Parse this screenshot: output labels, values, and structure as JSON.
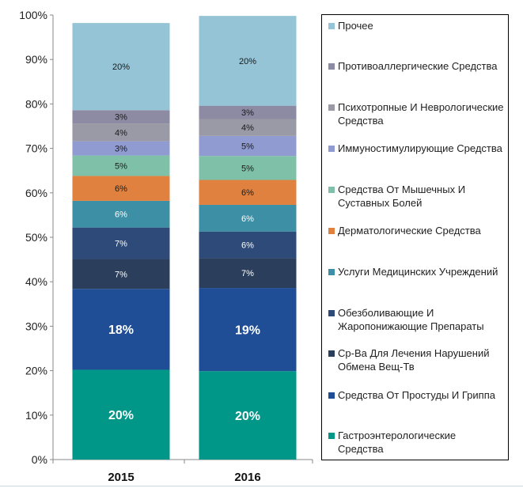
{
  "chart_data": {
    "type": "bar",
    "stacked": true,
    "categories": [
      "2015",
      "2016"
    ],
    "ylim": [
      0,
      100
    ],
    "yticks": [
      "0%",
      "10%",
      "20%",
      "30%",
      "40%",
      "50%",
      "60%",
      "70%",
      "80%",
      "90%",
      "100%"
    ],
    "grid": false,
    "legend_position": "right",
    "series": [
      {
        "name": "Гастроэнтерологические Средства",
        "color": "#009688",
        "values": [
          20.2,
          19.9
        ],
        "labels": [
          "20%",
          "20%"
        ],
        "label_style": "large"
      },
      {
        "name": "Средства От Простуды И Гриппа",
        "color": "#1f4e96",
        "values": [
          18.2,
          18.7
        ],
        "labels": [
          "18%",
          "19%"
        ],
        "label_style": "large"
      },
      {
        "name": "Ср-Ва Для Лечения Нарушений Обмена Вещ-Тв",
        "color": "#2b3f5c",
        "values": [
          6.7,
          6.7
        ],
        "labels": [
          "7%",
          "7%"
        ],
        "label_style": "small-light"
      },
      {
        "name": "Обезболивающие И Жаропонижающие Препараты",
        "color": "#2e4a78",
        "values": [
          7.1,
          6.0
        ],
        "labels": [
          "7%",
          "6%"
        ],
        "label_style": "small-light"
      },
      {
        "name": "Услуги Медицинских Учреждений",
        "color": "#3c8fa5",
        "values": [
          6.0,
          6.0
        ],
        "labels": [
          "6%",
          "6%"
        ],
        "label_style": "small-light"
      },
      {
        "name": "Дерматологические Средства",
        "color": "#e0813f",
        "values": [
          5.6,
          5.6
        ],
        "labels": [
          "6%",
          "6%"
        ],
        "label_style": "small-dark"
      },
      {
        "name": "Средства От Мышечных И Суставных Болей",
        "color": "#7fc1a8",
        "values": [
          4.6,
          5.4
        ],
        "labels": [
          "5%",
          "5%"
        ],
        "label_style": "small-dark"
      },
      {
        "name": "Иммуностимулирующие Средства",
        "color": "#8f9bd1",
        "values": [
          3.2,
          4.5
        ],
        "labels": [
          "3%",
          "5%"
        ],
        "label_style": "small-dark"
      },
      {
        "name": "Психотропные И Неврологические Средства",
        "color": "#9a9aa6",
        "values": [
          4.0,
          3.8
        ],
        "labels": [
          "4%",
          "4%"
        ],
        "label_style": "small-dark"
      },
      {
        "name": "Противоаллергические Средства",
        "color": "#8d8aa3",
        "values": [
          3.0,
          3.0
        ],
        "labels": [
          "3%",
          "3%"
        ],
        "label_style": "small-dark"
      },
      {
        "name": "Прочее",
        "color": "#94c4d6",
        "values": [
          19.6,
          20.2
        ],
        "labels": [
          "20%",
          "20%"
        ],
        "label_style": "small-dark"
      }
    ]
  }
}
